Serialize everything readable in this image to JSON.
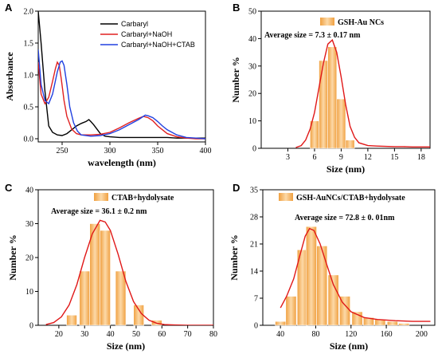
{
  "chart_data": [
    {
      "panel": "A",
      "type": "line",
      "xlabel": "wavelength (nm)",
      "ylabel": "Absorbance",
      "xlim": [
        225,
        400
      ],
      "ylim": [
        -0.05,
        2.0
      ],
      "xticks": [
        250,
        300,
        350,
        400
      ],
      "yticks": [
        0.0,
        0.5,
        1.0,
        1.5,
        2.0
      ],
      "yticklabels": [
        "0.0",
        "0.5",
        "1.0",
        "1.5",
        "2.0"
      ],
      "legend_position": "top-right",
      "series": [
        {
          "name": "Carbaryl",
          "color": "#000000",
          "x": [
            225,
            228,
            232,
            236,
            240,
            245,
            250,
            255,
            260,
            265,
            270,
            275,
            278,
            280,
            283,
            286,
            290,
            295,
            300,
            310,
            320,
            330,
            340,
            350,
            360,
            370,
            380,
            390,
            400
          ],
          "y": [
            2.0,
            1.5,
            0.75,
            0.2,
            0.1,
            0.06,
            0.05,
            0.08,
            0.14,
            0.2,
            0.24,
            0.27,
            0.3,
            0.27,
            0.22,
            0.16,
            0.08,
            0.04,
            0.03,
            0.02,
            0.02,
            0.02,
            0.02,
            0.02,
            0.02,
            0.01,
            0.01,
            0.01,
            0.01
          ]
        },
        {
          "name": "Carbaryl+NaOH",
          "color": "#e02020",
          "x": [
            225,
            228,
            232,
            236,
            240,
            243,
            245,
            247,
            249,
            252,
            255,
            260,
            265,
            270,
            280,
            290,
            300,
            310,
            320,
            330,
            335,
            340,
            345,
            350,
            360,
            370,
            380,
            390,
            400
          ],
          "y": [
            1.2,
            0.7,
            0.55,
            0.65,
            0.9,
            1.1,
            1.2,
            1.15,
            0.95,
            0.6,
            0.35,
            0.15,
            0.08,
            0.06,
            0.06,
            0.07,
            0.1,
            0.17,
            0.25,
            0.32,
            0.35,
            0.33,
            0.28,
            0.2,
            0.08,
            0.03,
            0.01,
            0.0,
            0.0
          ]
        },
        {
          "name": "Carbaryl+NaOH+CTAB",
          "color": "#2040e0",
          "x": [
            225,
            228,
            232,
            236,
            240,
            245,
            248,
            250,
            252,
            255,
            258,
            262,
            266,
            270,
            280,
            290,
            300,
            310,
            320,
            330,
            337,
            340,
            345,
            350,
            355,
            360,
            370,
            380,
            390,
            400
          ],
          "y": [
            1.4,
            0.85,
            0.6,
            0.55,
            0.7,
            1.05,
            1.2,
            1.22,
            1.15,
            0.85,
            0.5,
            0.25,
            0.12,
            0.06,
            0.04,
            0.05,
            0.08,
            0.14,
            0.22,
            0.3,
            0.37,
            0.36,
            0.33,
            0.27,
            0.2,
            0.14,
            0.06,
            0.02,
            0.01,
            0.0
          ]
        }
      ]
    },
    {
      "panel": "B",
      "type": "bar",
      "xlabel": "Size (nm)",
      "ylabel": "Number %",
      "legend_label": "GSH-Au NCs",
      "annotation": "Average size = 7.3 ± 0.17 nm",
      "xlim": [
        0,
        19
      ],
      "ylim": [
        0,
        50
      ],
      "xticks": [
        3,
        6,
        9,
        12,
        15,
        18
      ],
      "yticks": [
        0,
        10,
        20,
        30,
        40,
        50
      ],
      "bars": [
        {
          "x": 6,
          "value": 10
        },
        {
          "x": 7,
          "value": 32
        },
        {
          "x": 8,
          "value": 37
        },
        {
          "x": 9,
          "value": 18
        },
        {
          "x": 10,
          "value": 3
        }
      ],
      "fit_x": [
        3.9,
        4.5,
        5,
        5.5,
        6,
        6.5,
        7,
        7.5,
        8,
        8.5,
        9,
        9.5,
        10,
        10.5,
        11,
        12,
        13,
        14,
        15,
        16,
        17,
        18,
        19
      ],
      "fit_y": [
        0.3,
        1,
        3,
        7,
        13,
        22,
        31,
        38,
        39.5,
        35,
        26,
        16,
        8,
        4,
        2,
        1,
        0.8,
        0.7,
        0.6,
        0.6,
        0.5,
        0.5,
        0.5
      ]
    },
    {
      "panel": "C",
      "type": "bar",
      "xlabel": "Size (nm)",
      "ylabel": "Number %",
      "legend_label": "CTAB+hydolysate",
      "annotation": "Average size = 36.1 ± 0.2 nm",
      "xlim": [
        12,
        80
      ],
      "ylim": [
        0,
        40
      ],
      "xticks": [
        20,
        30,
        40,
        50,
        60,
        70,
        80
      ],
      "yticks": [
        0,
        10,
        20,
        30,
        40
      ],
      "bars": [
        {
          "x": 25,
          "value": 3
        },
        {
          "x": 30,
          "value": 16
        },
        {
          "x": 34,
          "value": 30
        },
        {
          "x": 38,
          "value": 28
        },
        {
          "x": 44,
          "value": 16
        },
        {
          "x": 51,
          "value": 6
        },
        {
          "x": 58,
          "value": 1.5
        }
      ],
      "fit_x": [
        15,
        18,
        21,
        24,
        27,
        30,
        33,
        36,
        38,
        40,
        43,
        46,
        49,
        52,
        55,
        58,
        61,
        65,
        70,
        75,
        80
      ],
      "fit_y": [
        0.2,
        0.8,
        2.5,
        6,
        12,
        20,
        27,
        31,
        30.5,
        28,
        21,
        13,
        7,
        3.5,
        1.5,
        0.6,
        0.2,
        0.1,
        0,
        0,
        0
      ]
    },
    {
      "panel": "D",
      "type": "bar",
      "xlabel": "Size (nm)",
      "ylabel": "Number %",
      "legend_label": "GSH-AuNCs/CTAB+hydolysate",
      "annotation": "Average size = 72.8 ± 0. 01nm",
      "xlim": [
        20,
        215
      ],
      "ylim": [
        0,
        35
      ],
      "xticks": [
        40,
        80,
        120,
        160,
        200
      ],
      "yticks": [
        0,
        7,
        14,
        21,
        28,
        35
      ],
      "bars": [
        {
          "x": 40,
          "value": 1
        },
        {
          "x": 52,
          "value": 7.5
        },
        {
          "x": 65,
          "value": 19.5
        },
        {
          "x": 75,
          "value": 25.5
        },
        {
          "x": 87,
          "value": 20.5
        },
        {
          "x": 100,
          "value": 13
        },
        {
          "x": 113,
          "value": 7.5
        },
        {
          "x": 127,
          "value": 3.5
        },
        {
          "x": 140,
          "value": 2
        },
        {
          "x": 153,
          "value": 1.5
        },
        {
          "x": 167,
          "value": 1
        },
        {
          "x": 180,
          "value": 0.5
        }
      ],
      "fit_x": [
        40,
        47,
        55,
        62,
        68,
        73,
        78,
        85,
        92,
        100,
        110,
        120,
        135,
        150,
        170,
        190,
        210
      ],
      "fit_y": [
        4.5,
        7.5,
        12,
        18,
        23,
        25,
        24.5,
        21,
        16,
        10.5,
        6,
        3.5,
        2,
        1.5,
        1.2,
        1,
        1
      ]
    }
  ]
}
